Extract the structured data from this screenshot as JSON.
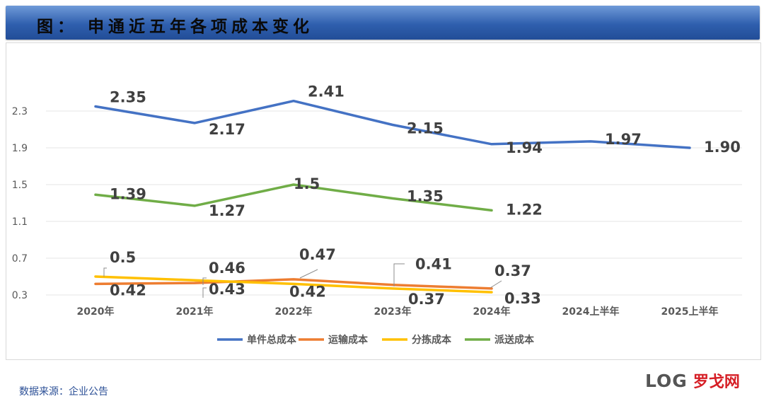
{
  "header": {
    "title": "图： 申通近五年各项成本变化"
  },
  "footer": {
    "source": "数据来源：企业公告"
  },
  "logo": {
    "latin": "LOG",
    "chinese": "罗戈网",
    "colors": {
      "latin": "#555555",
      "accent": "#d61f26"
    }
  },
  "colors": {
    "banner": "#2f5fae",
    "text": "#404040",
    "grid": "#e6e6e6"
  },
  "chart_data": {
    "type": "line",
    "title": "",
    "xlabel": "",
    "ylabel": "",
    "categories": [
      "2020年",
      "2021年",
      "2022年",
      "2023年",
      "2024年",
      "2024上半年",
      "2025上半年"
    ],
    "ylim": [
      0.3,
      2.65
    ],
    "yticks": [
      "0.3",
      "0.7",
      "1.1",
      "1.5",
      "1.9",
      "2.3"
    ],
    "ytick_values": [
      0.3,
      0.7,
      1.1,
      1.5,
      1.9,
      2.3
    ],
    "grid": true,
    "legend_position": "bottom",
    "series": [
      {
        "name": "单件总成本",
        "color": "#4472c4",
        "values": [
          2.35,
          2.17,
          2.41,
          2.15,
          1.94,
          1.97,
          1.9
        ],
        "labels": [
          "2.35",
          "2.17",
          "2.41",
          "2.15",
          "1.94",
          "1.97",
          "1.90"
        ]
      },
      {
        "name": "运输成本",
        "color": "#ed7d31",
        "values": [
          0.42,
          0.43,
          0.47,
          0.41,
          0.37,
          null,
          null
        ],
        "labels": [
          "0.42",
          "0.43",
          "0.47",
          "0.41",
          "0.37",
          null,
          null
        ]
      },
      {
        "name": "分拣成本",
        "color": "#ffc000",
        "values": [
          0.5,
          0.46,
          0.42,
          0.37,
          0.33,
          null,
          null
        ],
        "labels": [
          "0.5",
          "0.46",
          "0.42",
          "0.37",
          "0.33",
          null,
          null
        ]
      },
      {
        "name": "派送成本",
        "color": "#70ad47",
        "values": [
          1.39,
          1.27,
          1.5,
          1.35,
          1.22,
          null,
          null
        ],
        "labels": [
          "1.39",
          "1.27",
          "1.5",
          "1.35",
          "1.22",
          null,
          null
        ]
      }
    ]
  }
}
